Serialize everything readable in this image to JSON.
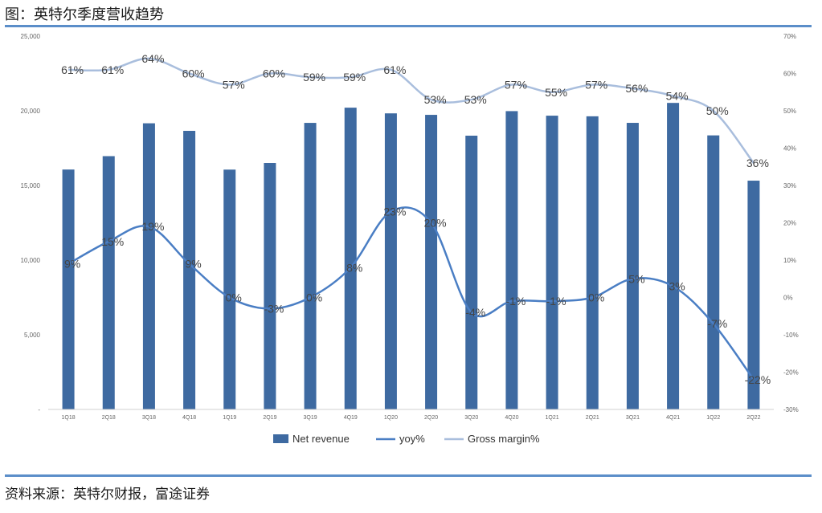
{
  "header": {
    "title": "图：英特尔季度营收趋势"
  },
  "footer": {
    "source": "资料来源：英特尔财报，富途证券"
  },
  "chart_data": {
    "type": "bar",
    "categories": [
      "1Q18",
      "2Q18",
      "3Q18",
      "4Q18",
      "1Q19",
      "2Q19",
      "3Q19",
      "4Q19",
      "1Q20",
      "2Q20",
      "3Q20",
      "4Q20",
      "1Q21",
      "2Q21",
      "3Q21",
      "4Q21",
      "1Q22",
      "2Q22"
    ],
    "series": [
      {
        "name": "Net revenue",
        "kind": "bar",
        "axis": "left",
        "color": "#3e6aa1",
        "values": [
          16066,
          16962,
          19163,
          18657,
          16061,
          16505,
          19190,
          20209,
          19828,
          19728,
          18333,
          19978,
          19673,
          19631,
          19192,
          20528,
          18353,
          15321
        ]
      },
      {
        "name": "yoy%",
        "kind": "line",
        "axis": "right",
        "color": "#4a7ec4",
        "values": [
          9,
          15,
          19,
          9,
          0,
          -3,
          0,
          8,
          23,
          20,
          -4,
          -1,
          -1,
          0,
          5,
          3,
          -7,
          -22
        ],
        "labels": [
          "9%",
          "15%",
          "19%",
          "9%",
          "0%",
          "-3%",
          "0%",
          "8%",
          "23%",
          "20%",
          "-4%",
          "-1%",
          "-1%",
          "0%",
          "5%",
          "3%",
          "-7%",
          "-22%"
        ]
      },
      {
        "name": "Gross margin%",
        "kind": "line",
        "axis": "right",
        "color": "#a9bedd",
        "values": [
          61,
          61,
          64,
          60,
          57,
          60,
          59,
          59,
          61,
          53,
          53,
          57,
          55,
          57,
          56,
          54,
          50,
          36
        ],
        "labels": [
          "61%",
          "61%",
          "64%",
          "60%",
          "57%",
          "60%",
          "59%",
          "59%",
          "61%",
          "53%",
          "53%",
          "57%",
          "55%",
          "57%",
          "56%",
          "54%",
          "50%",
          "36%"
        ]
      }
    ],
    "left_axis": {
      "min": 0,
      "max": 25000,
      "ticks": [
        0,
        5000,
        10000,
        15000,
        20000,
        25000
      ],
      "tick_labels": [
        "-",
        "5,000",
        "10,000",
        "15,000",
        "20,000",
        "25,000"
      ]
    },
    "right_axis": {
      "min": -30,
      "max": 70,
      "ticks": [
        -30,
        -20,
        -10,
        0,
        10,
        20,
        30,
        40,
        50,
        60,
        70
      ],
      "tick_labels": [
        "-30%",
        "-20%",
        "-10%",
        "0%",
        "10%",
        "20%",
        "30%",
        "40%",
        "50%",
        "60%",
        "70%"
      ]
    },
    "legend": {
      "position": "bottom",
      "items": [
        "Net revenue",
        "yoy%",
        "Gross margin%"
      ]
    }
  }
}
